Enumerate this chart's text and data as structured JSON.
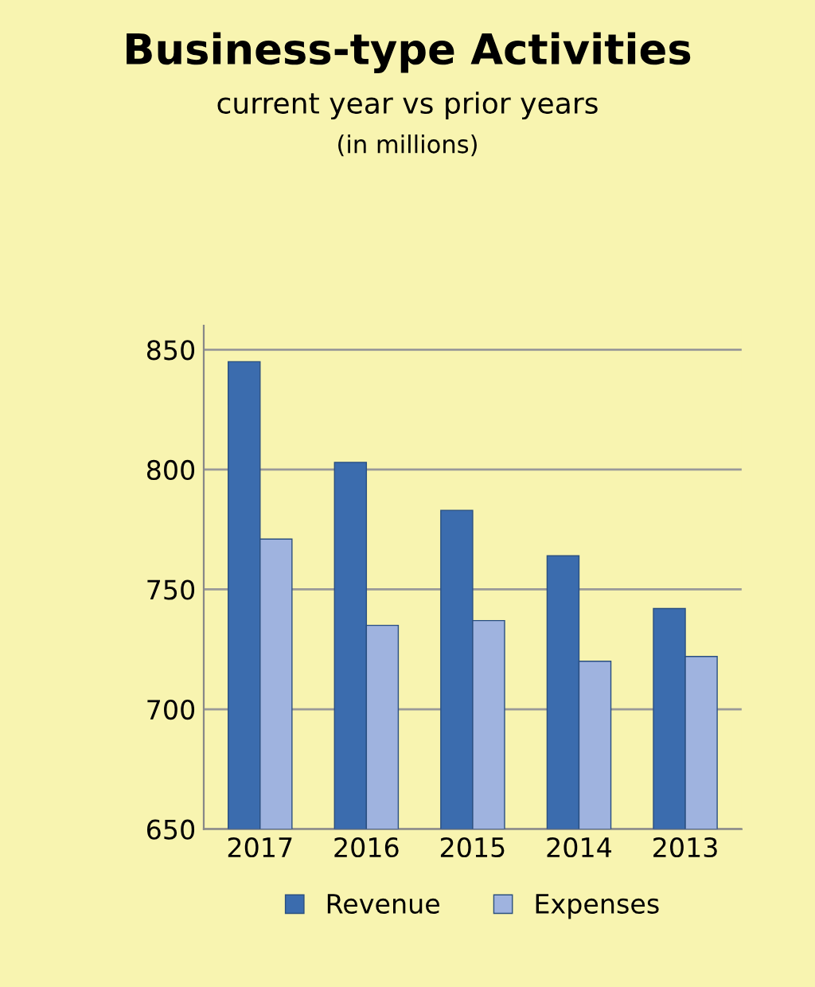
{
  "chart_data": {
    "type": "bar",
    "title": "Business-type Activities",
    "subtitle": "current year vs prior years",
    "annotations": [
      "(in millions)"
    ],
    "categories": [
      "2017",
      "2016",
      "2015",
      "2014",
      "2013"
    ],
    "series": [
      {
        "name": "Revenue",
        "color": "#3b6cae",
        "values": [
          845,
          803,
          783,
          764,
          742
        ]
      },
      {
        "name": "Expenses",
        "color": "#9fb3df",
        "values": [
          771,
          735,
          737,
          720,
          722
        ]
      }
    ],
    "ylim": [
      650,
      860
    ],
    "yticks": [
      650,
      700,
      750,
      800,
      850
    ],
    "grid": "y",
    "legend": "bottom"
  }
}
